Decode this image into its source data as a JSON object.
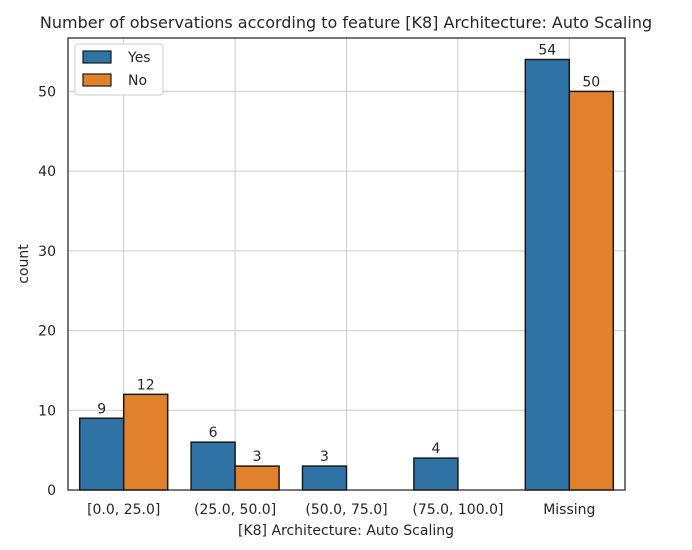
{
  "chart_data": {
    "type": "bar",
    "title": "Number of observations according to feature [K8] Architecture: Auto Scaling",
    "xlabel": "[K8] Architecture: Auto Scaling",
    "ylabel": "count",
    "categories": [
      "[0.0, 25.0]",
      "(25.0, 50.0]",
      "(50.0, 75.0]",
      "(75.0, 100.0]",
      "Missing"
    ],
    "series": [
      {
        "name": "Yes",
        "color": "#2e72a6",
        "values": [
          9,
          6,
          3,
          4,
          54
        ]
      },
      {
        "name": "No",
        "color": "#e1812c",
        "values": [
          12,
          3,
          null,
          null,
          50
        ]
      }
    ],
    "ylim": [
      0,
      56.7
    ],
    "yticks": [
      0,
      10,
      20,
      30,
      40,
      50
    ],
    "grid": true,
    "legend_position": "top-left"
  }
}
